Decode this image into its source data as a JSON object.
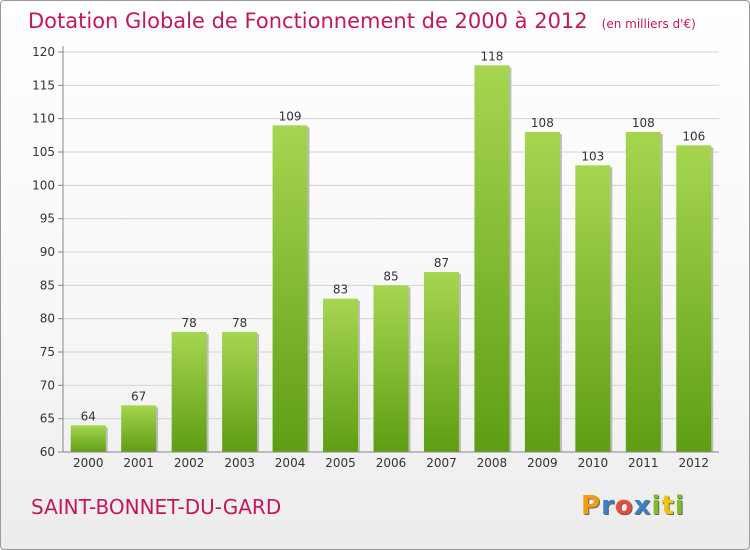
{
  "title": "Dotation Globale de Fonctionnement de 2000 à 2012",
  "subtitle": "(en milliers d'€)",
  "commune": "SAINT-BONNET-DU-GARD",
  "logo": {
    "letters": [
      "P",
      "r",
      "o",
      "x",
      "i",
      "t",
      "i"
    ],
    "colors": [
      "#f39c12",
      "#3b7fc4",
      "#e74c3c",
      "#3b7fc4",
      "#7cbf2a",
      "#f1c40f",
      "#7cbf2a"
    ]
  },
  "colors": {
    "bar_top": "#a6d64f",
    "bar_bottom": "#5e9e12",
    "title": "#c2185b"
  },
  "chart_data": {
    "type": "bar",
    "categories": [
      "2000",
      "2001",
      "2002",
      "2003",
      "2004",
      "2005",
      "2006",
      "2007",
      "2008",
      "2009",
      "2010",
      "2011",
      "2012"
    ],
    "values": [
      64,
      67,
      78,
      78,
      109,
      83,
      85,
      87,
      118,
      108,
      103,
      108,
      106
    ],
    "data_labels": [
      "64",
      "67",
      "78",
      "78",
      "109",
      "83",
      "85",
      "87",
      "118",
      "108",
      "103",
      "108",
      "106"
    ],
    "title": "Dotation Globale de Fonctionnement de 2000 à 2012",
    "ylim": [
      60,
      120
    ],
    "yticks": [
      60,
      65,
      70,
      75,
      80,
      85,
      90,
      95,
      100,
      105,
      110,
      115,
      120
    ],
    "grid": true
  }
}
